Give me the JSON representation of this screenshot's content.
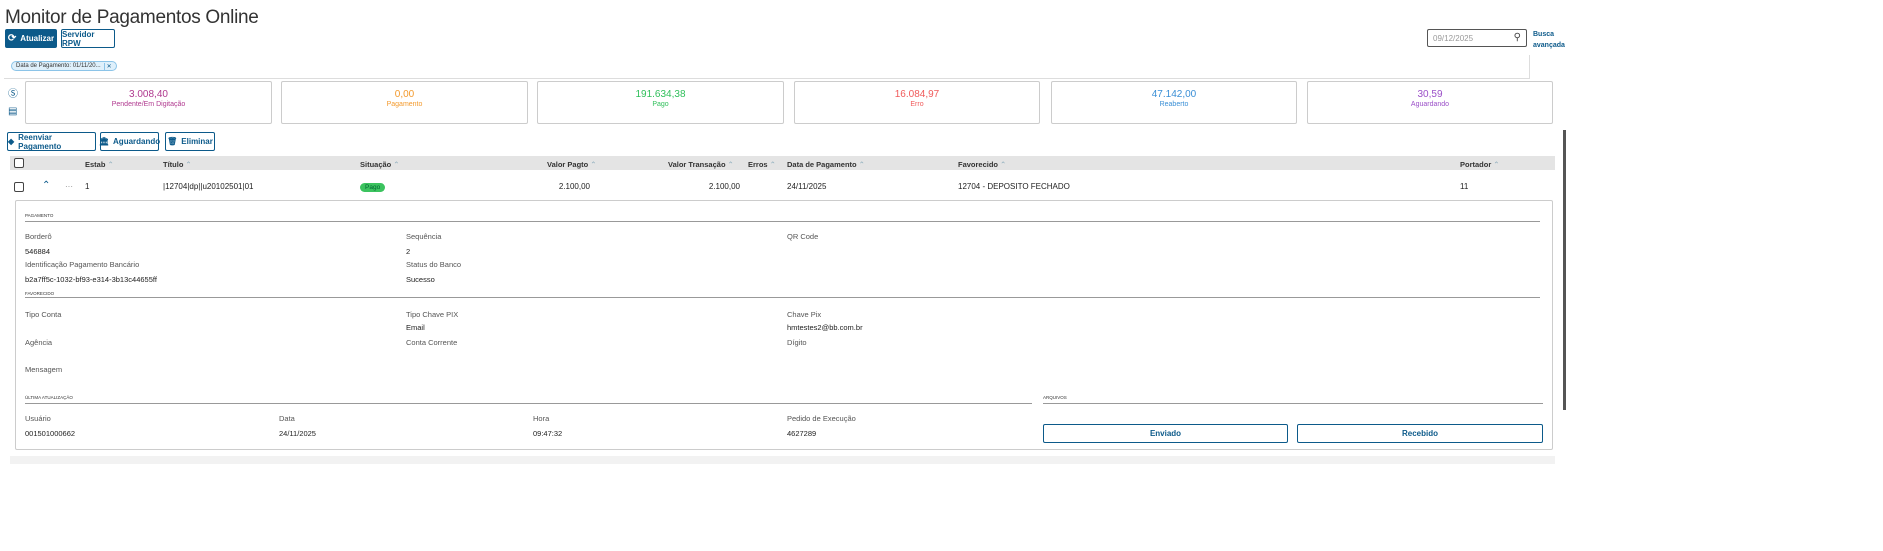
{
  "header": {
    "title": "Monitor de Pagamentos Online",
    "refresh_label": "Atualizar",
    "server_label": "Servidor RPW",
    "search_placeholder": "09/12/2025",
    "advanced_search": "Busca avançada"
  },
  "filter": {
    "chip": "Data de Pagamento: 01/11/20..."
  },
  "summary": [
    {
      "value": "3.008,40",
      "label": "Pendente/Em Digitação",
      "color": "#b0398f"
    },
    {
      "value": "0,00",
      "label": "Pagamento",
      "color": "#f39a2d"
    },
    {
      "value": "191.634,38",
      "label": "Pago",
      "color": "#2fbf5a"
    },
    {
      "value": "16.084,97",
      "label": "Erro",
      "color": "#f05a5a"
    },
    {
      "value": "47.142,00",
      "label": "Reaberto",
      "color": "#3a8fd6"
    },
    {
      "value": "30,59",
      "label": "Aguardando",
      "color": "#9b4fc8"
    }
  ],
  "actions": {
    "resend": "Reenviar Pagamento",
    "waiting": "Aguardando",
    "delete": "Eliminar"
  },
  "table": {
    "columns": [
      "Estab",
      "Título",
      "Situação",
      "Valor Pagto",
      "Valor Transação",
      "Erros",
      "Data de Pagamento",
      "Favorecido",
      "Portador"
    ],
    "rows": [
      {
        "estab": "1",
        "titulo": "|12704|dp||u20102501|01",
        "situacao": "Pago",
        "valor_pagto": "2.100,00",
        "valor_transacao": "2.100,00",
        "erros": "",
        "data": "24/11/2025",
        "favorecido": "12704 - DEPOSITO FECHADO",
        "portador": "11"
      }
    ]
  },
  "detail": {
    "pagamento_title": "Pagamento",
    "bordero_label": "Borderô",
    "bordero": "546884",
    "sequencia_label": "Sequência",
    "sequencia": "2",
    "qr_label": "QR Code",
    "ident_label": "Identificação Pagamento Bancário",
    "ident": "b2a7ff5c-1032-bf93-e314-3b13c44655ff",
    "status_label": "Status do Banco",
    "status": "Sucesso",
    "favorecido_title": "Favorecido",
    "tipo_conta_label": "Tipo Conta",
    "tipo_chave_label": "Tipo Chave PIX",
    "tipo_chave": "Email",
    "chave_label": "Chave Pix",
    "chave": "hmtestes2@bb.com.br",
    "agencia_label": "Agência",
    "conta_label": "Conta Corrente",
    "digito_label": "Dígito",
    "mensagem_label": "Mensagem",
    "ultima_title": "Última Atualização",
    "arquivos_title": "Arquivos",
    "usuario_label": "Usuário",
    "usuario": "001501000662",
    "data_label": "Data",
    "data": "24/11/2025",
    "hora_label": "Hora",
    "hora": "09:47:32",
    "pedido_label": "Pedido de Execução",
    "pedido": "4627289",
    "enviado": "Enviado",
    "recebido": "Recebido"
  }
}
